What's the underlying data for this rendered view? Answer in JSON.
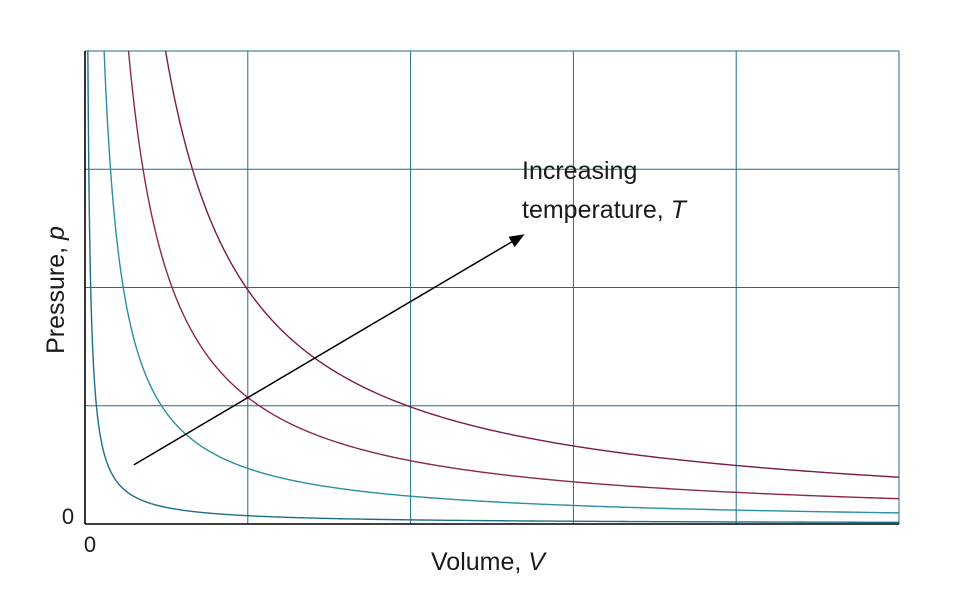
{
  "chart_data": {
    "type": "line",
    "title": "",
    "xlabel": "Volume, ",
    "xlabel_var": "V",
    "ylabel": "Pressure, ",
    "ylabel_var": "p",
    "x_tick_label": "0",
    "y_tick_label": "0",
    "xlim": [
      0,
      5
    ],
    "ylim": [
      0,
      4
    ],
    "grid": true,
    "series": [
      {
        "constant": 0.07,
        "color": "#1f6e86"
      },
      {
        "constant": 0.47,
        "color": "#2a8fa0"
      },
      {
        "constant": 1.07,
        "color": "#8b2750"
      },
      {
        "constant": 1.98,
        "color": "#7a1a4a"
      }
    ],
    "annotation": {
      "line1": "Increasing",
      "line2": "temperature, ",
      "line2_var": "T",
      "arrow_from": [
        0.3,
        0.5
      ],
      "arrow_to": [
        2.7,
        2.45
      ]
    },
    "colors": {
      "grid": "#1f6e86",
      "axis": "#000000",
      "arrow": "#000000"
    }
  }
}
